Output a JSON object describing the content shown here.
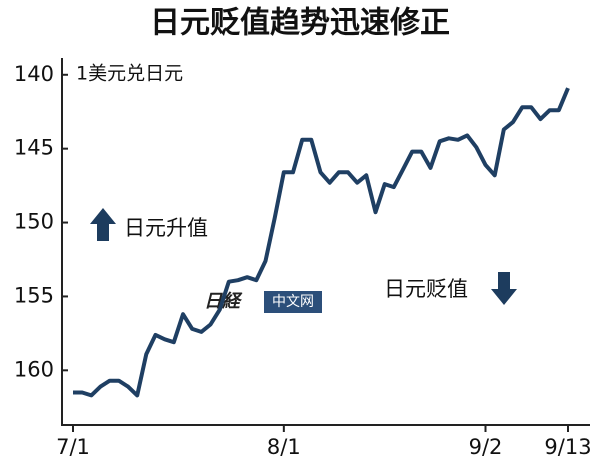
{
  "chart_data": {
    "type": "line",
    "title": "日元贬值趋势迅速修正",
    "y_label": "1美元兑日元",
    "annotations": [
      "日元升值",
      "日元贬值"
    ],
    "watermark": [
      "日経",
      "中文网"
    ],
    "categories": [
      "7/1",
      null,
      null,
      null,
      null,
      null,
      null,
      null,
      null,
      null,
      null,
      null,
      null,
      null,
      null,
      null,
      null,
      null,
      null,
      null,
      null,
      null,
      null,
      "8/1",
      null,
      null,
      null,
      null,
      null,
      null,
      null,
      null,
      null,
      null,
      null,
      null,
      null,
      null,
      null,
      null,
      null,
      null,
      null,
      null,
      null,
      "9/2",
      null,
      null,
      null,
      null,
      null,
      null,
      null,
      null,
      "9/13"
    ],
    "series": [
      {
        "name": "1美元兑日元",
        "color": "#1f3f63",
        "values": [
          161.5,
          161.5,
          161.7,
          161.1,
          160.7,
          160.7,
          161.1,
          161.7,
          158.9,
          157.6,
          157.9,
          158.1,
          156.2,
          157.2,
          157.4,
          156.9,
          155.9,
          154.0,
          153.9,
          153.7,
          153.9,
          152.6,
          149.7,
          146.6,
          146.6,
          144.4,
          144.4,
          146.6,
          147.3,
          146.6,
          146.6,
          147.3,
          146.8,
          149.3,
          147.4,
          147.6,
          146.4,
          145.2,
          145.2,
          146.3,
          144.5,
          144.3,
          144.4,
          144.1,
          144.9,
          146.1,
          146.8,
          143.7,
          143.2,
          142.2,
          142.2,
          143.0,
          142.4,
          142.4,
          140.9
        ]
      }
    ],
    "ylim": [
      163.7,
      139
    ],
    "yticks": [
      140,
      145,
      150,
      155,
      160
    ],
    "grid": false
  }
}
